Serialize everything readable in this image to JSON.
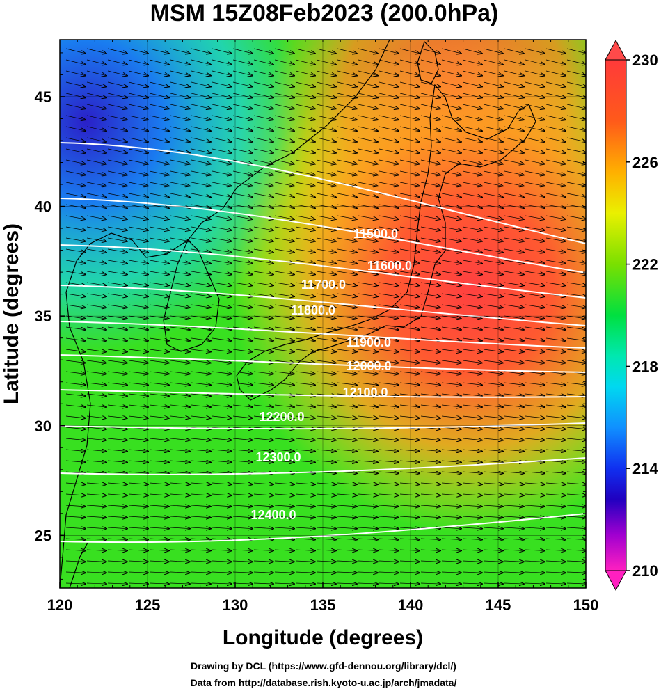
{
  "title": "MSM 15Z08Feb2023 (200.0hPa)",
  "xlabel": "Longitude (degrees)",
  "ylabel": "Latitude  (degrees)",
  "x_ticks": [
    "120",
    "125",
    "130",
    "135",
    "140",
    "145",
    "150"
  ],
  "y_ticks": [
    "25",
    "30",
    "35",
    "40",
    "45"
  ],
  "colorbar": {
    "ticks": [
      "230",
      "226",
      "222",
      "218",
      "214",
      "210"
    ],
    "range": [
      210,
      230
    ]
  },
  "credits": {
    "line1": "Drawing by DCL (https://www.gfd-dennou.org/library/dcl/)",
    "line2": "Data from http://database.rish.kyoto-u.ac.jp/arch/jmadata/"
  },
  "contours": [
    {
      "label": "11500.0"
    },
    {
      "label": "11600.0"
    },
    {
      "label": "11700.0"
    },
    {
      "label": "11800.0"
    },
    {
      "label": "11900.0"
    },
    {
      "label": "12000.0"
    },
    {
      "label": "12100.0"
    },
    {
      "label": "12200.0"
    },
    {
      "label": "12300.0"
    },
    {
      "label": "12400.0"
    }
  ],
  "extent": {
    "lon": [
      120,
      150
    ],
    "lat": [
      22.6,
      47.6
    ]
  }
}
